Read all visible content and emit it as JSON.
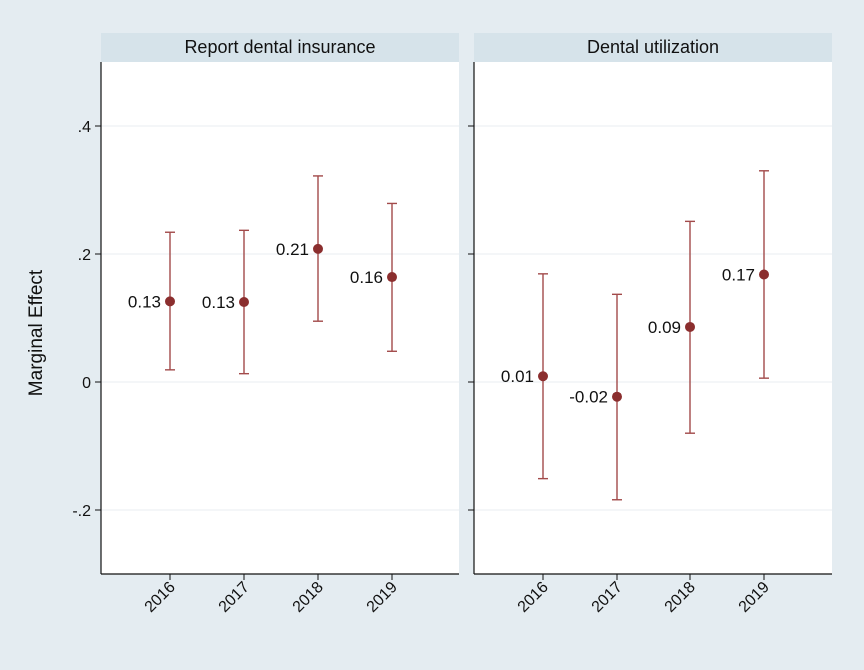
{
  "chart_data": {
    "type": "scatter",
    "subtype": "point-estimate-with-confidence-intervals",
    "ylabel": "Marginal Effect",
    "ylim": [
      -0.3,
      0.5
    ],
    "yticks": [
      -0.2,
      0,
      0.2,
      0.4
    ],
    "ytick_labels": [
      "-.2",
      "0",
      ".2",
      ".4"
    ],
    "categories": [
      "2016",
      "2017",
      "2018",
      "2019"
    ],
    "grid": true,
    "colors": {
      "marker": "#8b2e2e",
      "ci": "#a24a4a",
      "panel_header": "#d6e3ea",
      "outer_bg": "#e4ecf1",
      "grid": "#e8eef2"
    },
    "panels": [
      {
        "title": "Report dental insurance",
        "series": [
          {
            "year": "2016",
            "estimate": 0.126,
            "ci_low": 0.019,
            "ci_high": 0.234,
            "label": "0.13"
          },
          {
            "year": "2017",
            "estimate": 0.125,
            "ci_low": 0.013,
            "ci_high": 0.237,
            "label": "0.13"
          },
          {
            "year": "2018",
            "estimate": 0.208,
            "ci_low": 0.095,
            "ci_high": 0.322,
            "label": "0.21"
          },
          {
            "year": "2019",
            "estimate": 0.164,
            "ci_low": 0.048,
            "ci_high": 0.279,
            "label": "0.16"
          }
        ]
      },
      {
        "title": "Dental utilization",
        "series": [
          {
            "year": "2016",
            "estimate": 0.009,
            "ci_low": -0.151,
            "ci_high": 0.169,
            "label": "0.01"
          },
          {
            "year": "2017",
            "estimate": -0.023,
            "ci_low": -0.184,
            "ci_high": 0.137,
            "label": "-0.02"
          },
          {
            "year": "2018",
            "estimate": 0.086,
            "ci_low": -0.08,
            "ci_high": 0.251,
            "label": "0.09"
          },
          {
            "year": "2019",
            "estimate": 0.168,
            "ci_low": 0.006,
            "ci_high": 0.33,
            "label": "0.17"
          }
        ]
      }
    ]
  }
}
